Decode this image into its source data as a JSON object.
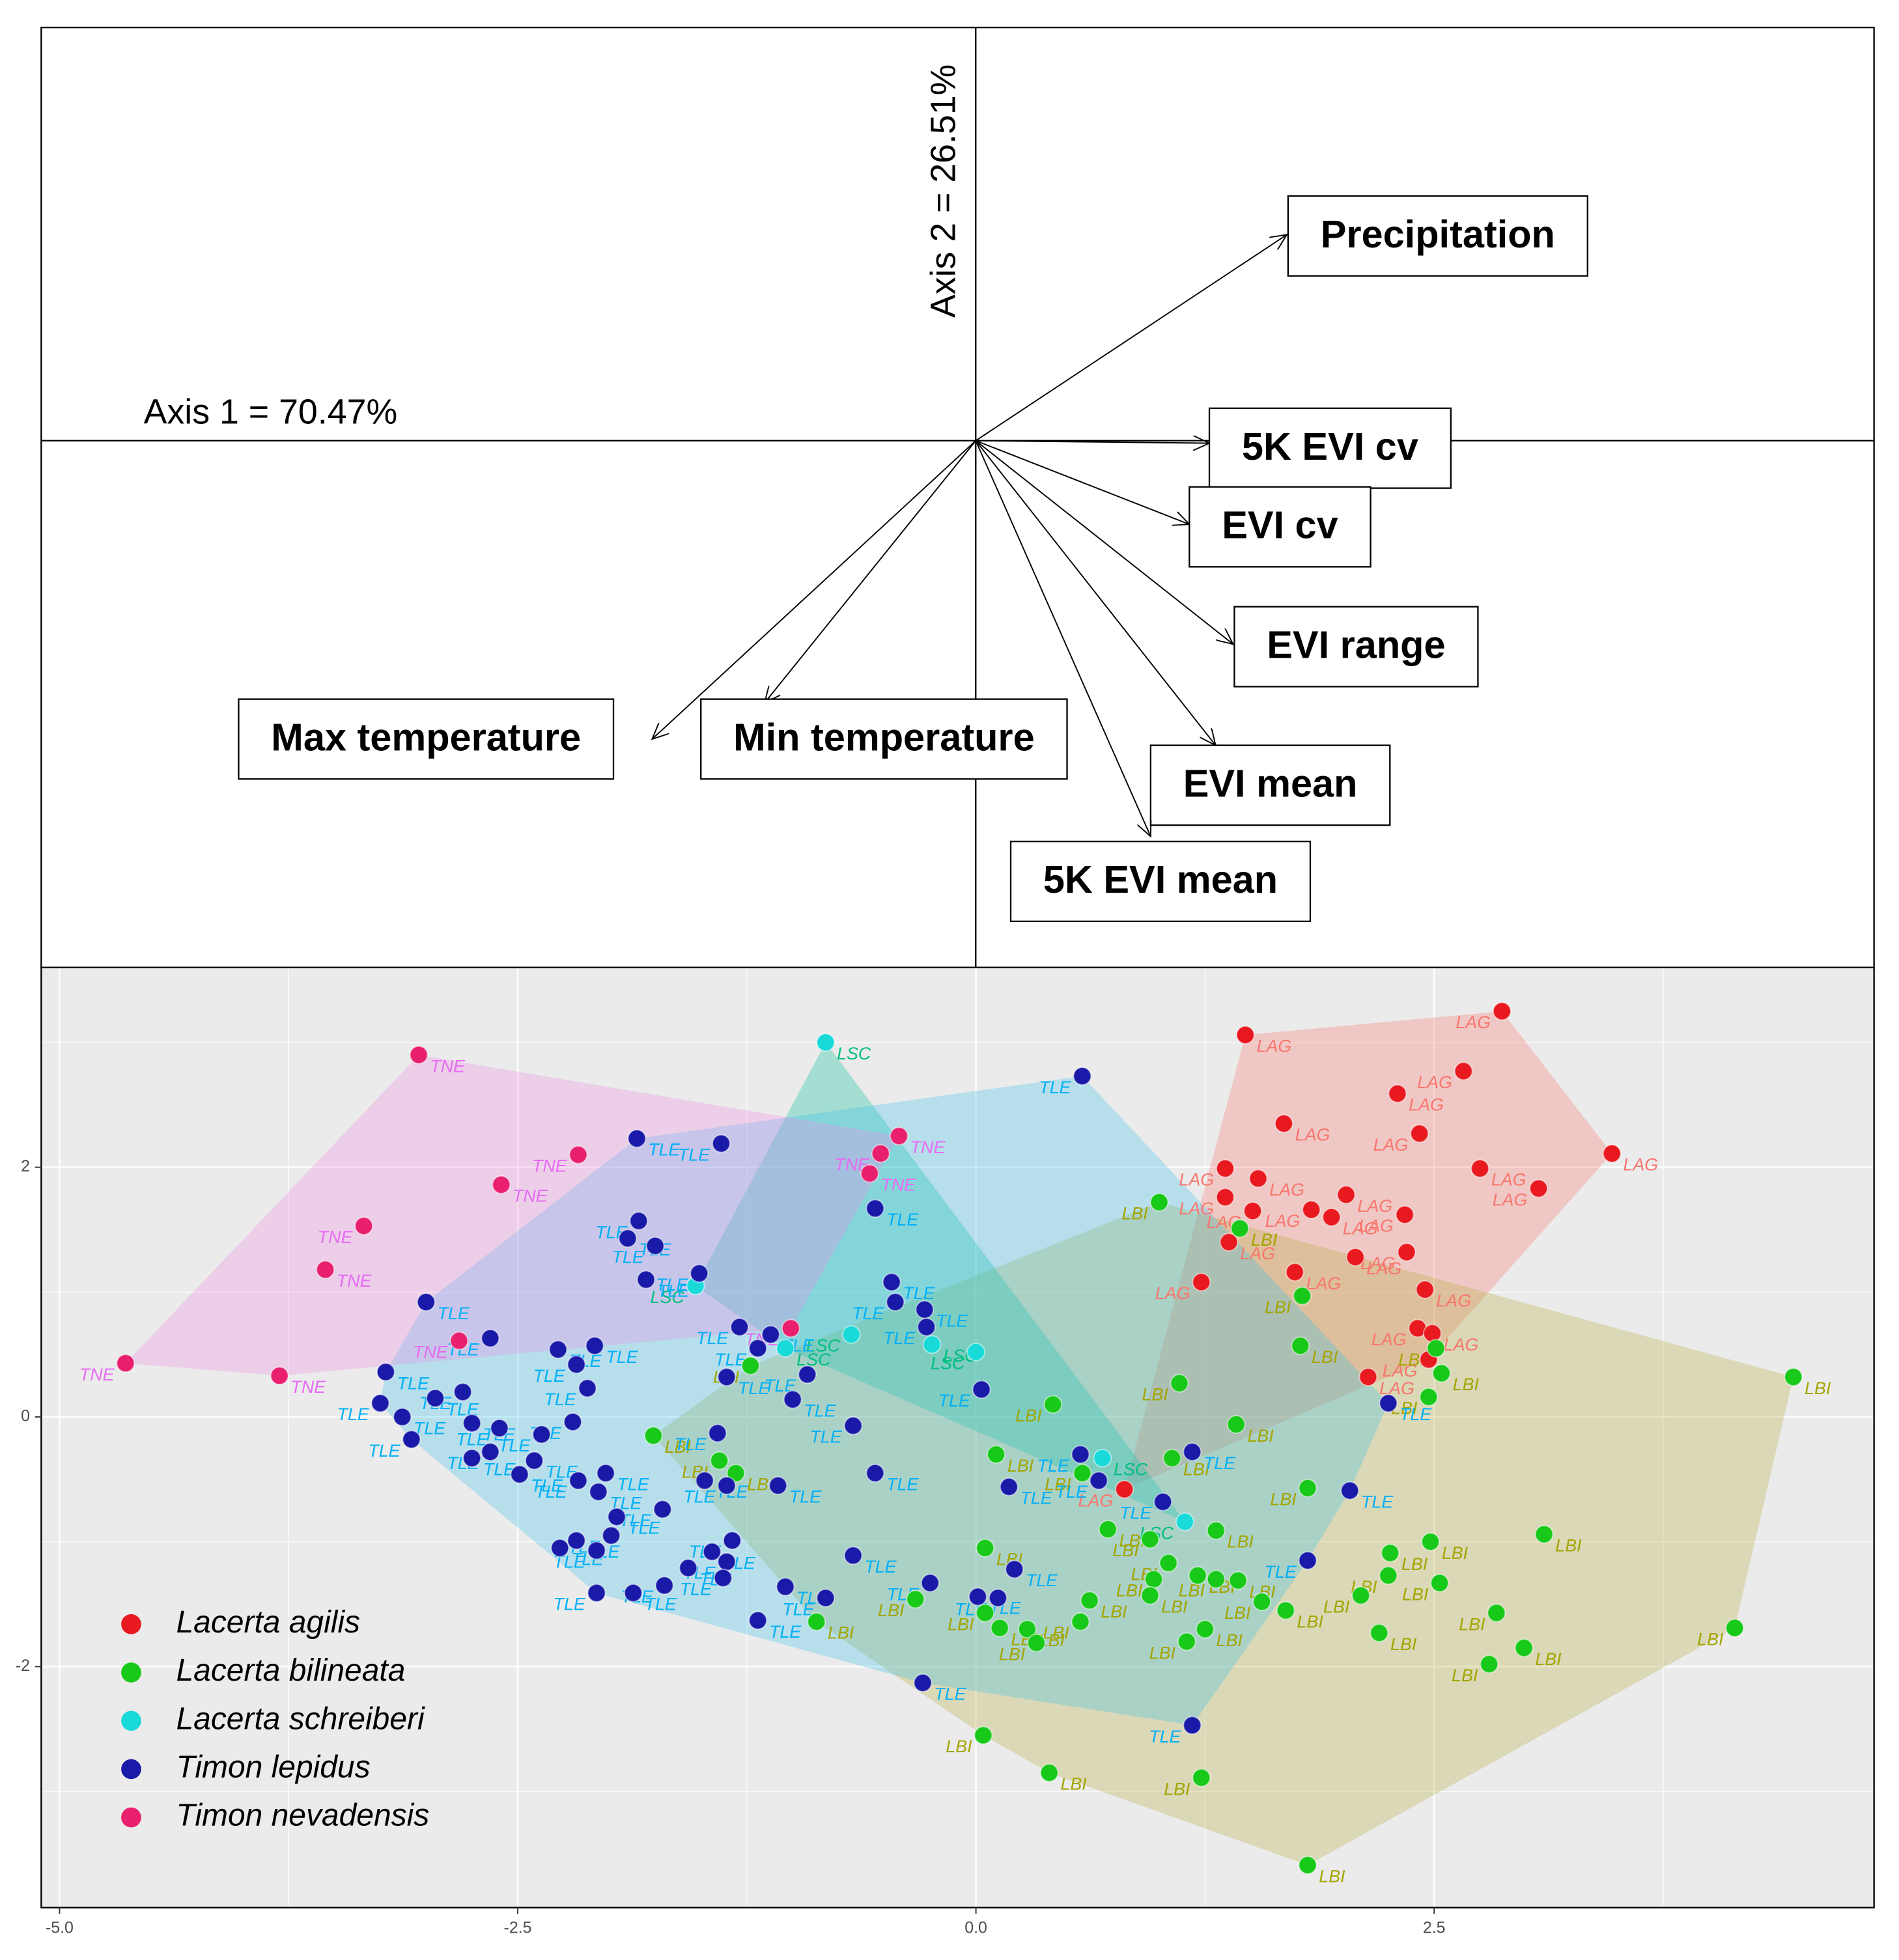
{
  "chart_data": [
    {
      "type": "biplot",
      "x_label": "Axis 1 = 70.47%",
      "y_label": "Axis 2 = 26.51%",
      "xlim": [
        -7.48,
        7.19
      ],
      "ylim": [
        -4.22,
        3.31
      ],
      "arrows": [
        {
          "label": "Precipitation",
          "x": 2.49,
          "y": 1.65
        },
        {
          "label": "5K EVI cv",
          "x": 1.87,
          "y": -0.02
        },
        {
          "label": "EVI cv",
          "x": 1.71,
          "y": -0.67
        },
        {
          "label": "EVI range",
          "x": 2.06,
          "y": -1.63
        },
        {
          "label": "EVI mean",
          "x": 1.92,
          "y": -2.44
        },
        {
          "label": "5K EVI mean",
          "x": 1.4,
          "y": -3.17
        },
        {
          "label": "Max temperature",
          "x": -2.59,
          "y": -2.39
        },
        {
          "label": "Min temperature",
          "x": -1.69,
          "y": -2.1
        }
      ]
    },
    {
      "type": "scatter",
      "xlim": [
        -5.1,
        4.9
      ],
      "ylim": [
        -3.93,
        3.6
      ],
      "xticks": [
        {
          "value": -5,
          "label": "-5.0"
        },
        {
          "value": -2.5,
          "label": "-2.5"
        },
        {
          "value": 0,
          "label": "0.0"
        },
        {
          "value": 2.5,
          "label": "2.5"
        }
      ],
      "yticks": [
        -2,
        0,
        2
      ],
      "xminor": [
        -3.75,
        -1.25,
        1.25,
        3.75
      ],
      "yminor": [
        -3,
        -1,
        1,
        3
      ],
      "grid": true,
      "legend": "bottom-left",
      "series": [
        {
          "name": "Lacerta agilis",
          "label": "LAG",
          "color": "#e8191f",
          "label_color": "#f8766d",
          "hull_color": "#f8766d",
          "x": [
            1.47,
            2.87,
            1.68,
            2.66,
            2.3,
            2.42,
            3.47,
            1.36,
            1.54,
            1.36,
            2.75,
            3.07,
            2.02,
            1.83,
            1.94,
            1.51,
            1.38,
            2.34,
            2.07,
            2.35,
            1.74,
            1.23,
            2.45,
            2.41,
            2.49,
            2.47,
            2.14,
            0.81
          ],
          "y": [
            3.06,
            3.25,
            2.35,
            2.77,
            2.59,
            2.27,
            2.11,
            1.99,
            1.91,
            1.76,
            1.99,
            1.83,
            1.78,
            1.66,
            1.6,
            1.65,
            1.4,
            1.62,
            1.28,
            1.32,
            1.16,
            1.08,
            1.02,
            0.71,
            0.67,
            0.46,
            0.32,
            -0.58
          ]
        },
        {
          "name": "Lacerta bilineata",
          "label": "LBI",
          "color": "#19c919",
          "label_color": "#a3a500",
          "hull_color": "#b3ad3a",
          "x": [
            1.0,
            1.44,
            1.78,
            1.77,
            2.51,
            2.54,
            2.47,
            4.46,
            1.11,
            1.42,
            0.42,
            0.11,
            0.58,
            1.07,
            1.81,
            0.72,
            0.95,
            1.31,
            1.05,
            1.21,
            1.31,
            1.43,
            0.97,
            0.95,
            1.56,
            1.69,
            2.1,
            2.26,
            2.25,
            2.48,
            2.53,
            3.1,
            2.84,
            2.99,
            2.8,
            2.2,
            4.14,
            1.25,
            1.15,
            0.62,
            0.57,
            0.28,
            0.33,
            0.13,
            0.05,
            0.05,
            -0.33,
            -0.87,
            -1.4,
            -1.31,
            -1.23,
            -1.76,
            0.04,
            0.4,
            1.23,
            1.81
          ],
          "y": [
            1.72,
            1.51,
            0.97,
            0.57,
            0.55,
            0.35,
            0.16,
            0.32,
            0.27,
            -0.06,
            0.1,
            -0.3,
            -0.45,
            -0.33,
            -0.57,
            -0.9,
            -0.98,
            -0.91,
            -1.17,
            -1.27,
            -1.3,
            -1.31,
            -1.3,
            -1.43,
            -1.48,
            -1.55,
            -1.43,
            -1.09,
            -1.27,
            -1.0,
            -1.33,
            -0.94,
            -1.57,
            -1.85,
            -1.98,
            -1.73,
            -1.69,
            -1.7,
            -1.8,
            -1.47,
            -1.64,
            -1.7,
            -1.81,
            -1.69,
            -1.57,
            -1.05,
            -1.46,
            -1.64,
            -0.35,
            -0.45,
            0.41,
            -0.15,
            -2.55,
            -2.85,
            -2.89,
            -3.59
          ]
        },
        {
          "name": "Lacerta schreiberi",
          "label": "LSC",
          "color": "#19d9d9",
          "label_color": "#00bf7d",
          "hull_color": "#00c09a",
          "x": [
            -0.82,
            -1.53,
            -1.04,
            -0.68,
            -0.24,
            0.0,
            0.69,
            1.14
          ],
          "y": [
            3.0,
            1.05,
            0.55,
            0.66,
            0.58,
            0.52,
            -0.33,
            -0.84
          ]
        },
        {
          "name": "Timon lepidus",
          "label": "TLE",
          "color": "#1a1aa8",
          "label_color": "#00b0f6",
          "hull_color": "#3cc0ec",
          "x": [
            0.58,
            -1.85,
            -1.39,
            -0.55,
            -1.84,
            -1.9,
            -1.75,
            -1.8,
            -1.51,
            -0.46,
            -0.44,
            -0.28,
            -0.27,
            -3.0,
            -2.65,
            -2.08,
            -2.18,
            -2.28,
            -1.29,
            -1.12,
            -1.19,
            -1.36,
            -0.92,
            -1.0,
            -2.12,
            -3.22,
            -3.25,
            -3.13,
            -3.08,
            -2.95,
            -2.8,
            -2.75,
            -2.6,
            -2.75,
            -2.65,
            -2.41,
            -2.37,
            -2.49,
            -2.2,
            -2.02,
            -2.17,
            -2.06,
            -1.41,
            -1.48,
            -1.36,
            -1.08,
            -0.67,
            -0.55,
            0.03,
            2.25,
            0.57,
            1.18,
            0.67,
            0.18,
            1.02,
            2.04,
            1.81,
            0.21,
            -1.71,
            -1.96,
            -1.99,
            -2.18,
            -2.07,
            -2.27,
            -1.33,
            -1.44,
            -1.36,
            -1.57,
            -1.38,
            -0.67,
            -1.7,
            -1.87,
            -2.07,
            -1.04,
            -0.82,
            -1.19,
            -0.25,
            0.01,
            0.12,
            -0.29,
            1.18
          ],
          "y": [
            2.73,
            2.23,
            2.19,
            1.67,
            1.57,
            1.43,
            1.37,
            1.1,
            1.15,
            1.08,
            0.92,
            0.86,
            0.72,
            0.92,
            0.63,
            0.57,
            0.42,
            0.54,
            0.72,
            0.66,
            0.55,
            0.32,
            0.34,
            0.14,
            0.23,
            0.36,
            0.11,
            0.0,
            -0.18,
            0.15,
            0.2,
            -0.05,
            -0.09,
            -0.33,
            -0.28,
            -0.35,
            -0.14,
            -0.46,
            -0.04,
            -0.45,
            -0.51,
            -0.6,
            -0.13,
            -0.51,
            -0.55,
            -0.55,
            -0.07,
            -0.45,
            0.22,
            0.11,
            -0.3,
            -0.28,
            -0.51,
            -0.56,
            -0.68,
            -0.59,
            -1.15,
            -1.22,
            -0.74,
            -0.8,
            -0.95,
            -0.99,
            -1.07,
            -1.05,
            -0.99,
            -1.08,
            -1.16,
            -1.21,
            -1.29,
            -1.11,
            -1.35,
            -1.41,
            -1.41,
            -1.36,
            -1.45,
            -1.63,
            -1.33,
            -1.44,
            -1.45,
            -2.13,
            -2.47
          ]
        },
        {
          "name": "Timon nevadensis",
          "label": "TNE",
          "color": "#e8206e",
          "label_color": "#e76bf3",
          "hull_color": "#ef8ae6",
          "x": [
            -3.04,
            -2.17,
            -2.59,
            -3.34,
            -3.55,
            -4.64,
            -3.8,
            -2.82,
            -0.42,
            -0.52,
            -0.58,
            -1.01
          ],
          "y": [
            2.9,
            2.1,
            1.86,
            1.53,
            1.18,
            0.43,
            0.33,
            0.61,
            2.25,
            2.11,
            1.95,
            0.71
          ]
        }
      ]
    }
  ]
}
